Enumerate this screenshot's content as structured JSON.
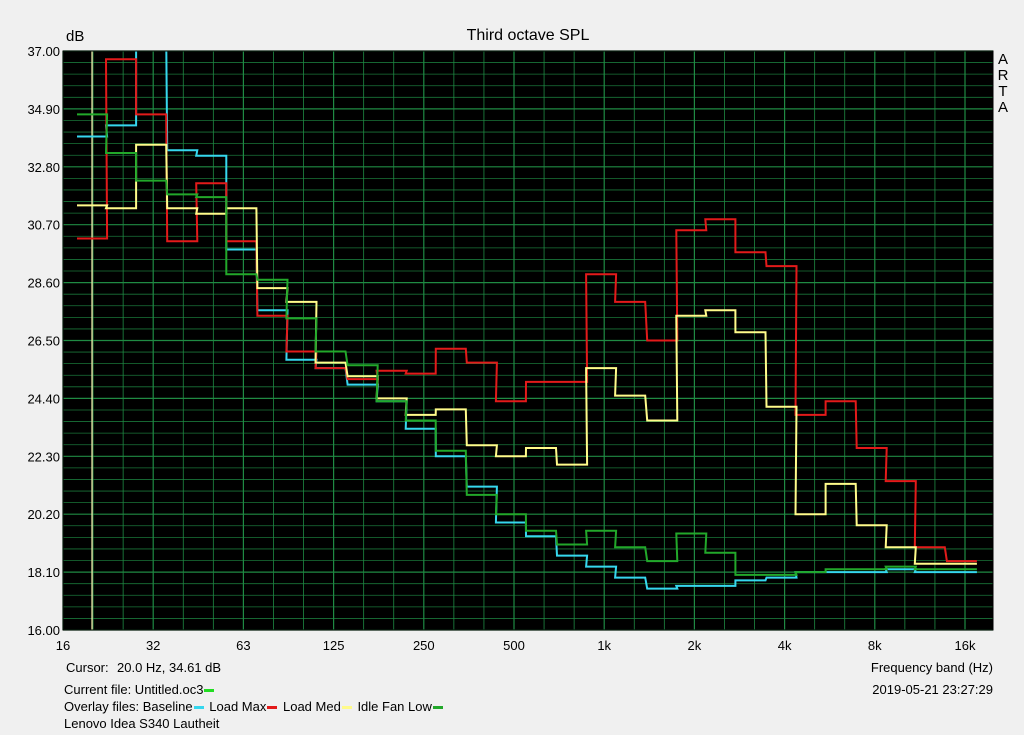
{
  "chart_data": {
    "type": "line",
    "title": "Third octave SPL",
    "ylabel": "dB",
    "xlabel": "Frequency band (Hz)",
    "ylim": [
      16.0,
      37.0
    ],
    "y_ticks": [
      "37.00",
      "34.90",
      "32.80",
      "30.70",
      "28.60",
      "26.50",
      "24.40",
      "22.30",
      "20.20",
      "18.10",
      "16.00"
    ],
    "x_tick_labels": [
      "16",
      "32",
      "63",
      "125",
      "250",
      "500",
      "1k",
      "2k",
      "4k",
      "8k",
      "16k"
    ],
    "x_scale": "log (third-octave bands)",
    "grid": true,
    "bands_hz": [
      20,
      25,
      31.5,
      40,
      50,
      63,
      80,
      100,
      125,
      160,
      200,
      250,
      315,
      400,
      500,
      630,
      800,
      1000,
      1250,
      1600,
      2000,
      2500,
      3150,
      4000,
      5000,
      6300,
      8000,
      10000,
      12500,
      16000
    ],
    "series": [
      {
        "name": "Baseline",
        "color": "#36d7ee",
        "values": [
          33.9,
          34.3,
          37.5,
          33.4,
          33.2,
          29.8,
          27.6,
          25.8,
          25.5,
          24.9,
          24.3,
          23.3,
          22.3,
          21.2,
          19.9,
          19.4,
          18.7,
          18.3,
          17.9,
          17.5,
          17.6,
          17.6,
          17.8,
          17.9,
          18.1,
          18.1,
          18.1,
          18.2,
          18.1,
          18.1
        ]
      },
      {
        "name": "Load Max",
        "color": "#e31a1a",
        "values": [
          30.2,
          36.7,
          34.7,
          30.1,
          32.2,
          30.1,
          27.4,
          26.1,
          25.5,
          25.1,
          25.4,
          25.3,
          26.2,
          25.7,
          24.3,
          25.0,
          25.0,
          28.9,
          27.9,
          26.5,
          30.5,
          30.9,
          29.7,
          29.2,
          23.8,
          24.3,
          22.6,
          21.4,
          19.0,
          18.5
        ]
      },
      {
        "name": "Load Med",
        "color": "#fffb8a",
        "values": [
          31.4,
          31.3,
          33.6,
          31.3,
          31.1,
          31.3,
          28.4,
          27.9,
          25.7,
          25.2,
          24.4,
          23.8,
          24.0,
          22.7,
          22.3,
          22.6,
          22.0,
          25.5,
          24.5,
          23.6,
          27.4,
          27.6,
          26.8,
          24.1,
          20.2,
          21.3,
          19.8,
          19.0,
          18.4,
          18.4
        ]
      },
      {
        "name": "Idle Fan Low",
        "color": "#22a82a",
        "values": [
          34.7,
          33.3,
          32.3,
          31.8,
          31.7,
          28.9,
          28.7,
          27.3,
          26.1,
          25.6,
          24.3,
          23.6,
          22.5,
          20.9,
          20.2,
          19.6,
          19.1,
          19.6,
          19.0,
          18.5,
          19.5,
          18.8,
          18.0,
          18.0,
          18.1,
          18.2,
          18.2,
          18.3,
          18.2,
          18.2
        ]
      }
    ]
  },
  "cursor": {
    "label": "Cursor:",
    "value": "20.0 Hz, 34.61 dB",
    "hz": 20.0
  },
  "info": {
    "current_file": "Current file: Untitled.oc3",
    "current_file_color": "#22dd22",
    "overlay_files": "Overlay files:",
    "caption": "Lenovo Idea S340 Lautheit",
    "datetime": "2019-05-21   23:27:29"
  },
  "brand": [
    "A",
    "R",
    "T",
    "A"
  ],
  "colors": {
    "plot_background": "#000000",
    "grid": "#1f8a43",
    "cursor_line": "#f4f0b0"
  }
}
